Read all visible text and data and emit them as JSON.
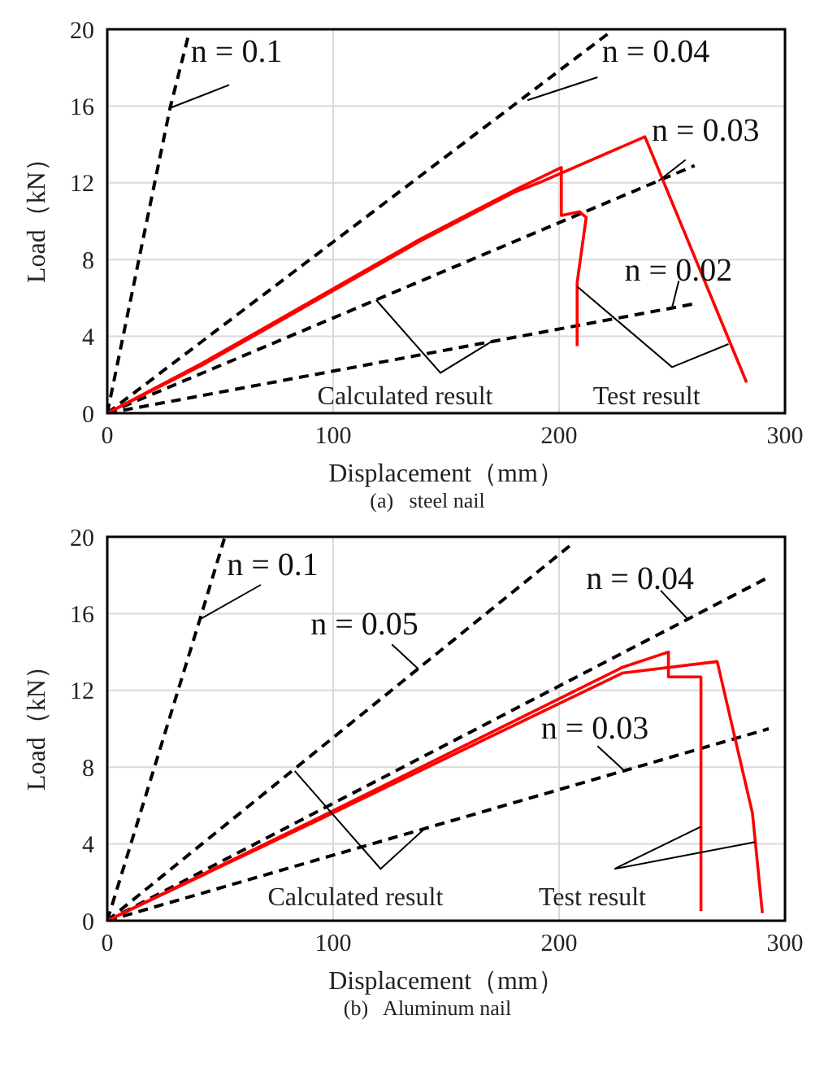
{
  "chart_data": [
    {
      "type": "line",
      "title": "(a)   steel nail",
      "xlabel": "Displacement（mm）",
      "ylabel": "Load（kN）",
      "xlim": [
        0,
        300
      ],
      "xticks": [
        0,
        100,
        200,
        300
      ],
      "ylim": [
        0,
        20
      ],
      "yticks": [
        0,
        4,
        8,
        12,
        16,
        20
      ],
      "grid": true,
      "legend": false,
      "marker": "none",
      "annotations": [
        "Calculated result",
        "Test result"
      ],
      "series": [
        {
          "name": "n = 0.1",
          "color": "#000000",
          "line_style": "dashed",
          "x": [
            0,
            27.8,
            36.2
          ],
          "values": [
            0,
            15.9,
            19.8
          ]
        },
        {
          "name": "n = 0.04",
          "color": "#000000",
          "line_style": "dashed",
          "x": [
            0,
            222
          ],
          "values": [
            0,
            19.8
          ]
        },
        {
          "name": "n = 0.03",
          "color": "#000000",
          "line_style": "dashed",
          "x": [
            0,
            260
          ],
          "values": [
            0,
            12.9
          ]
        },
        {
          "name": "n = 0.02",
          "color": "#000000",
          "line_style": "dashed",
          "x": [
            0,
            260
          ],
          "values": [
            0,
            5.7
          ]
        },
        {
          "color": "#ff0000",
          "line_style": "solid",
          "x": [
            0,
            42,
            69,
            139,
            180,
            201,
            201,
            209,
            212,
            208,
            208
          ],
          "values": [
            0,
            2.6,
            4.4,
            9.1,
            11.6,
            12.8,
            10.3,
            10.5,
            10.2,
            6.8,
            3.5
          ]
        },
        {
          "color": "#ff0000",
          "line_style": "solid",
          "x": [
            0,
            42,
            69,
            139,
            180,
            191,
            238,
            283
          ],
          "values": [
            0,
            2.5,
            4.3,
            9.0,
            11.5,
            12.0,
            14.4,
            1.6
          ]
        }
      ]
    },
    {
      "type": "line",
      "title": "(b)   Aluminum nail",
      "xlabel": "Displacement（mm）",
      "ylabel": "Load（kN）",
      "xlim": [
        0,
        300
      ],
      "xticks": [
        0,
        100,
        200,
        300
      ],
      "ylim": [
        0,
        20
      ],
      "yticks": [
        0,
        4,
        8,
        12,
        16,
        20
      ],
      "grid": true,
      "legend": false,
      "marker": "none",
      "annotations": [
        "Calculated result",
        "Test result"
      ],
      "series": [
        {
          "name": "n = 0.1",
          "color": "#000000",
          "line_style": "dashed",
          "x": [
            0,
            41,
            51.8
          ],
          "values": [
            0,
            15.7,
            19.9
          ]
        },
        {
          "name": "n = 0.05",
          "color": "#000000",
          "line_style": "dashed",
          "x": [
            0,
            206.5
          ],
          "values": [
            0,
            19.7
          ]
        },
        {
          "name": "n = 0.04",
          "color": "#000000",
          "line_style": "dashed",
          "x": [
            0,
            292.8
          ],
          "values": [
            0,
            17.9
          ]
        },
        {
          "name": "n = 0.03",
          "color": "#000000",
          "line_style": "dashed",
          "x": [
            0,
            292.8
          ],
          "values": [
            0,
            10.0
          ]
        },
        {
          "color": "#ff0000",
          "line_style": "solid",
          "x": [
            0,
            92.6,
            168,
            228,
            248.4,
            248.4,
            262.8,
            262.8
          ],
          "values": [
            0,
            5.3,
            9.7,
            13.2,
            14.0,
            12.7,
            12.7,
            0.5
          ]
        },
        {
          "color": "#ff0000",
          "line_style": "solid",
          "x": [
            0,
            92.6,
            168,
            228,
            270,
            285.6,
            290
          ],
          "values": [
            0,
            5.2,
            9.5,
            12.9,
            13.5,
            5.6,
            0.4
          ]
        }
      ]
    }
  ]
}
